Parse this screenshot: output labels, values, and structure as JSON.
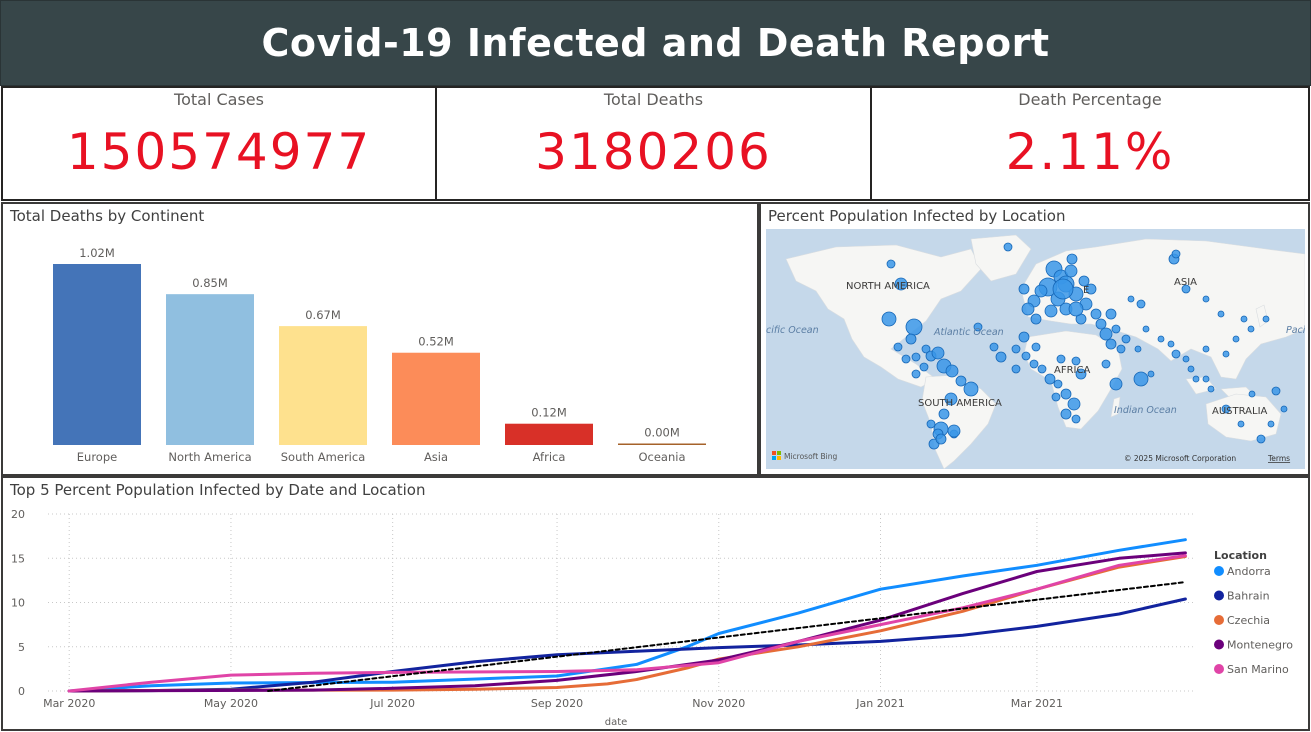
{
  "header": {
    "title": "Covid-19 Infected and Death Report"
  },
  "kpis": [
    {
      "label": "Total Cases",
      "value": "150574977"
    },
    {
      "label": "Total Deaths",
      "value": "3180206"
    },
    {
      "label": "Death Percentage",
      "value": "2.11%"
    }
  ],
  "bar_panel": {
    "title": "Total Deaths by Continent"
  },
  "map_panel": {
    "title": "Percent Population Infected by Location",
    "labels": {
      "north_america": "NORTH AMERICA",
      "south_america": "SOUTH AMERICA",
      "asia": "ASIA",
      "africa": "AFRICA",
      "australia": "AUSTRALIA",
      "europe_fragment": "E",
      "atlantic": "Atlantic Ocean",
      "pacific_left": "cific Ocean",
      "pacific_right": "Paci",
      "indian": "Indian Ocean"
    },
    "bing_logo": "Microsoft Bing",
    "copyright": "© 2025 Microsoft Corporation",
    "terms": "Terms",
    "colors": {
      "water": "#c5d8ea",
      "land": "#f6f6f4",
      "bubble": "#3a96e8",
      "bubble_stroke": "#1667b7"
    }
  },
  "line_panel": {
    "title": "Top 5 Percent Population Infected by Date and Location"
  },
  "chart_data": [
    {
      "type": "bar",
      "title": "Total Deaths by Continent",
      "categories": [
        "Europe",
        "North America",
        "South America",
        "Asia",
        "Africa",
        "Oceania"
      ],
      "values": [
        1.02,
        0.85,
        0.67,
        0.52,
        0.12,
        0.0
      ],
      "data_labels": [
        "1.02M",
        "0.85M",
        "0.67M",
        "0.52M",
        "0.12M",
        "0.00M"
      ],
      "colors": [
        "#4474b8",
        "#90bfe0",
        "#fee18e",
        "#fc8c59",
        "#d83028",
        "#a5622a"
      ],
      "ylim": [
        0,
        1.02
      ]
    },
    {
      "type": "line",
      "title": "Top 5 Percent Population Infected by Date and Location",
      "xlabel": "date",
      "ylabel": "",
      "ylim": [
        0,
        20
      ],
      "yticks": [
        0,
        5,
        10,
        15,
        20
      ],
      "xlim": [
        "2020-02-22",
        "2021-04-30"
      ],
      "xticks": [
        {
          "date": "2020-03-01",
          "label": "Mar 2020"
        },
        {
          "date": "2020-05-01",
          "label": "May 2020"
        },
        {
          "date": "2020-07-01",
          "label": "Jul 2020"
        },
        {
          "date": "2020-09-01",
          "label": "Sep 2020"
        },
        {
          "date": "2020-11-01",
          "label": "Nov 2020"
        },
        {
          "date": "2021-01-01",
          "label": "Jan 2021"
        },
        {
          "date": "2021-03-01",
          "label": "Mar 2021"
        }
      ],
      "grid": true,
      "legend": {
        "title": "Location",
        "position": "right"
      },
      "series": [
        {
          "name": "Andorra",
          "color": "#118dff",
          "x": [
            "2020-03-01",
            "2020-04-01",
            "2020-05-01",
            "2020-07-01",
            "2020-09-01",
            "2020-10-01",
            "2020-10-20",
            "2020-11-01",
            "2020-12-01",
            "2021-01-01",
            "2021-02-01",
            "2021-03-01",
            "2021-04-01",
            "2021-04-26"
          ],
          "y": [
            0,
            0.6,
            0.9,
            1.0,
            1.7,
            3.0,
            5.0,
            6.5,
            8.8,
            11.5,
            13.0,
            14.2,
            15.9,
            17.1
          ]
        },
        {
          "name": "Bahrain",
          "color": "#12239e",
          "x": [
            "2020-03-01",
            "2020-04-01",
            "2020-05-01",
            "2020-06-01",
            "2020-07-01",
            "2020-08-01",
            "2020-09-01",
            "2020-10-01",
            "2020-11-01",
            "2020-12-01",
            "2021-01-01",
            "2021-02-01",
            "2021-03-01",
            "2021-04-01",
            "2021-04-26"
          ],
          "y": [
            0,
            0.05,
            0.2,
            1.0,
            2.2,
            3.3,
            4.1,
            4.5,
            4.9,
            5.2,
            5.6,
            6.3,
            7.3,
            8.7,
            10.4
          ]
        },
        {
          "name": "Czechia",
          "color": "#e66c37",
          "x": [
            "2020-03-01",
            "2020-05-01",
            "2020-07-01",
            "2020-08-01",
            "2020-09-01",
            "2020-09-20",
            "2020-10-01",
            "2020-10-20",
            "2020-11-01",
            "2020-12-01",
            "2021-01-01",
            "2021-02-01",
            "2021-03-01",
            "2021-04-01",
            "2021-04-26"
          ],
          "y": [
            0,
            0.1,
            0.1,
            0.2,
            0.4,
            0.8,
            1.3,
            2.6,
            3.6,
            5.0,
            6.8,
            9.0,
            11.5,
            14.0,
            15.2
          ]
        },
        {
          "name": "Montenegro",
          "color": "#6b007b",
          "x": [
            "2020-03-01",
            "2020-06-01",
            "2020-07-01",
            "2020-08-01",
            "2020-09-01",
            "2020-10-01",
            "2020-11-01",
            "2020-12-01",
            "2021-01-01",
            "2021-02-01",
            "2021-03-01",
            "2021-04-01",
            "2021-04-26"
          ],
          "y": [
            0,
            0.1,
            0.3,
            0.6,
            1.2,
            2.2,
            3.5,
            5.6,
            8.0,
            11.0,
            13.5,
            15.0,
            15.6
          ]
        },
        {
          "name": "San Marino",
          "color": "#e044a7",
          "x": [
            "2020-03-01",
            "2020-04-01",
            "2020-05-01",
            "2020-06-01",
            "2020-07-01",
            "2020-09-01",
            "2020-10-01",
            "2020-11-01",
            "2020-12-01",
            "2021-01-01",
            "2021-02-01",
            "2021-03-01",
            "2021-04-01",
            "2021-04-26"
          ],
          "y": [
            0,
            1.0,
            1.8,
            2.0,
            2.1,
            2.2,
            2.4,
            3.2,
            5.6,
            7.5,
            9.4,
            11.5,
            14.2,
            15.3
          ]
        },
        {
          "name": "",
          "color": "#000000",
          "dashed": true,
          "x": [
            "2020-05-15",
            "2021-04-26"
          ],
          "y": [
            0,
            12.3
          ]
        }
      ]
    }
  ]
}
